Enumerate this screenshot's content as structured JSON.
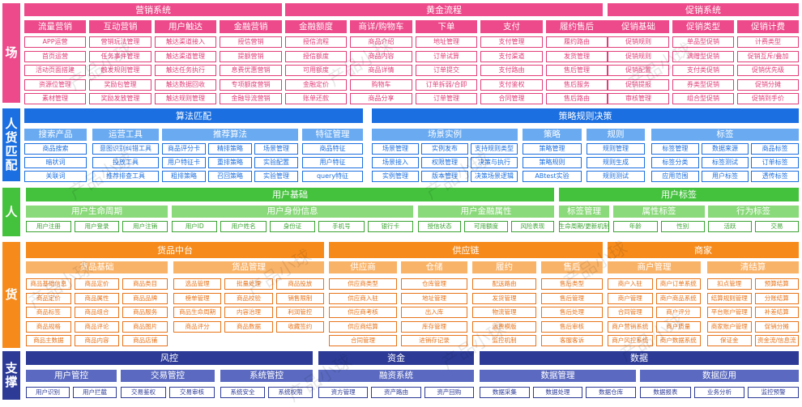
{
  "colors": {
    "pink": "#ec4a8a",
    "pink_chip": "#e23d78",
    "blue": "#1b6fe0",
    "blue_sub": "#69aaf1",
    "blue_chip": "#1b6fe0",
    "green": "#44c23d",
    "green_sub": "#8ad97a",
    "green_chip": "#3aa332",
    "orange": "#f68b1c",
    "orange_sub": "#f9b368",
    "orange_chip": "#e8741a",
    "navy": "#2d3b97",
    "navy_sub": "#5b6ac0",
    "navy_chip": "#2d3b97"
  },
  "watermark": "产品小球",
  "rows": {
    "chang": {
      "label": "场",
      "headers": [
        "营销系统",
        "黄金流程",
        "促销系统"
      ],
      "columns": [
        {
          "title": "流量营销",
          "items": [
            "APP运营",
            "首页运营",
            "活动页面搭建",
            "资源位管理",
            "素材管理"
          ]
        },
        {
          "title": "互动营销",
          "items": [
            "营销玩法管理",
            "任务事件管理",
            "触发规则管理",
            "奖励包管理",
            "奖励发放管理"
          ]
        },
        {
          "title": "用户触达",
          "items": [
            "触达渠道接入",
            "触达渠道管理",
            "触达任务执行",
            "触达数据回收",
            "触达规则管理"
          ]
        },
        {
          "title": "金融营销",
          "items": [
            "授信营销",
            "提额营销",
            "息费优惠营销",
            "专项额度营销",
            "金融导流营销"
          ]
        },
        {
          "title": "金融额度",
          "items": [
            "授信流程",
            "授信额度",
            "可用额度",
            "金融定价",
            "账单还款"
          ]
        },
        {
          "title": "商详/购物车",
          "items": [
            "商品介绍",
            "商品内容",
            "商品详情",
            "购物车",
            "商品分享"
          ]
        },
        {
          "title": "下单",
          "items": [
            "地址管理",
            "订单试算",
            "订单提交",
            "订单拆弱/合即",
            "订单管理"
          ]
        },
        {
          "title": "支付",
          "items": [
            "支付管理",
            "支付渠道",
            "支付路由",
            "支付鉴权",
            "合同管理"
          ]
        },
        {
          "title": "履约售后",
          "items": [
            "履约路由",
            "发货管理",
            "售后管理",
            "售后服务",
            "售后路由"
          ]
        },
        {
          "title": "促销基础",
          "items": [
            "促销规则",
            "促销规则",
            "促销配置",
            "促销提报",
            "审核管理"
          ]
        },
        {
          "title": "促销类型",
          "items": [
            "单品型促销",
            "满赠型促销",
            "支付类促销",
            "券类型促销",
            "组合型促销"
          ]
        },
        {
          "title": "促销计费",
          "items": [
            "计费类型",
            "促销互斥/叠加",
            "促销优先级",
            "促销分摊",
            "促销到手价"
          ]
        }
      ]
    },
    "renhuo": {
      "label": "人货匹配",
      "headers": [
        "算法匹配",
        "策略规则决策"
      ],
      "groups": [
        {
          "title": "搜索产品",
          "rows": [
            [
              "商品搜索"
            ],
            [
              "暗状词"
            ],
            [
              "关联词"
            ]
          ]
        },
        {
          "title": "运营工具",
          "rows": [
            [
              "意图识别纠错工具"
            ],
            [
              "投放工具"
            ],
            [
              "推荐排查工具"
            ]
          ]
        },
        {
          "title": "推荐算法",
          "rows": [
            [
              "商品评分卡",
              "精排策略",
              "场景管理"
            ],
            [
              "用户特征卡",
              "重排策略",
              "实验配置"
            ],
            [
              "粗排策略",
              "召回策略",
              "实验管理"
            ]
          ]
        },
        {
          "title": "特征管理",
          "rows": [
            [
              "商品特征"
            ],
            [
              "用户特征"
            ],
            [
              "query特征"
            ]
          ]
        },
        {
          "title": "场景实例",
          "rows": [
            [
              "场景管理",
              "实例发布",
              "支持规则类型"
            ],
            [
              "场景接入",
              "权限管理",
              "决策与执行"
            ],
            [
              "实例管理",
              "版本管理",
              "决策场景逻辑"
            ]
          ]
        },
        {
          "title": "策略",
          "rows": [
            [
              "策略管理"
            ],
            [
              "策略规则"
            ],
            [
              "ABtest实验"
            ]
          ]
        },
        {
          "title": "规则",
          "rows": [
            [
              "规则管理"
            ],
            [
              "规则生成"
            ],
            [
              "规则测试"
            ]
          ]
        },
        {
          "title": "标签",
          "rows": [
            [
              "标签管理",
              "数据来源",
              "商品标签"
            ],
            [
              "标签分类",
              "标签测试",
              "订单标签"
            ],
            [
              "应用范围",
              "用户标签",
              "透传标签"
            ]
          ]
        }
      ]
    },
    "ren": {
      "label": "人",
      "headers": [
        "用户基础",
        "用户标签"
      ],
      "groups": [
        {
          "title": "用户生命周期",
          "items": [
            "用户注册",
            "用户登录",
            "用户注销"
          ]
        },
        {
          "title": "用户身份信息",
          "items": [
            "用户ID",
            "用户姓名",
            "身份证",
            "手机号",
            "银行卡"
          ]
        },
        {
          "title": "用户金融属性",
          "items": [
            "授信状态",
            "可用额度",
            "风险表现"
          ]
        },
        {
          "title": "标签管理",
          "items": [
            "生命周期/更新机制"
          ]
        },
        {
          "title": "属性标签",
          "items": [
            "年龄",
            "性别"
          ]
        },
        {
          "title": "行为标签",
          "items": [
            "活跃",
            "交易"
          ]
        }
      ]
    },
    "huo": {
      "label": "货",
      "headers": [
        "货品中台",
        "供应链",
        "商家"
      ],
      "groups": [
        {
          "title": "货品基础",
          "cols": [
            [
              "商品基础信息",
              "商品定价",
              "商品标签",
              "商品规格",
              "商品主数据"
            ],
            [
              "商品定价",
              "商品属性",
              "商品组合",
              "商品评论",
              "商品内容"
            ],
            [
              "商品类目",
              "商品品牌",
              "商品服务",
              "商品图片",
              "商品店铺"
            ]
          ]
        },
        {
          "title": "货品管理",
          "cols": [
            [
              "选品管理",
              "榜单管理",
              "商品生命周期",
              "商品评分"
            ],
            [
              "批量处理",
              "商品校验",
              "内容治理",
              "商品数据"
            ],
            [
              "商品投放",
              "销售限制",
              "利润管控",
              "收藏签约"
            ]
          ]
        },
        {
          "title": "供应商",
          "cols": [
            [
              "供应商类型",
              "供应商入驻",
              "供应商考核",
              "供应商结算",
              "合同管理"
            ]
          ]
        },
        {
          "title": "仓储",
          "cols": [
            [
              "仓库管理",
              "地址管理",
              "出入库",
              "库存管理",
              "进销存记录"
            ]
          ]
        },
        {
          "title": "履约",
          "cols": [
            [
              "配送路由",
              "发货管理",
              "物流管理",
              "运费模版",
              "监控机制"
            ]
          ]
        },
        {
          "title": "售后",
          "cols": [
            [
              "售后类型",
              "售后管理",
              "售后处理",
              "售后审核",
              "客服客诉"
            ]
          ]
        },
        {
          "title": "商户管理",
          "cols": [
            [
              "商户入驻",
              "商户管理",
              "合同管理",
              "商户营销系统",
              "商户风控系统"
            ],
            [
              "商户订单系统",
              "商户商品系统",
              "商户评分",
              "商户质量",
              "商户数据系统"
            ]
          ]
        },
        {
          "title": "清结算",
          "cols": [
            [
              "扣点管理",
              "结算规则管理",
              "平台账户管理",
              "商家账户管理",
              "保证金"
            ],
            [
              "预算结算",
              "分账结算",
              "补差结算",
              "促销分摊",
              "资金流/信息流"
            ]
          ]
        }
      ]
    },
    "zhicheng": {
      "label": "支撑",
      "headers": [
        "风控",
        "资金",
        "数据"
      ],
      "groups": [
        {
          "title": "用户管控",
          "items": [
            "用户识别",
            "用户拦截"
          ]
        },
        {
          "title": "交易管控",
          "items": [
            "交易鉴权",
            "交易审核"
          ]
        },
        {
          "title": "系统管控",
          "items": [
            "系统安全",
            "系统权限"
          ]
        },
        {
          "title": "融资系统",
          "items": [
            "资方管理",
            "资产路由",
            "资产回购"
          ]
        },
        {
          "title": "数据管理",
          "items": [
            "数据采集",
            "数据处理",
            "数据仓库"
          ]
        },
        {
          "title": "数据应用",
          "items": [
            "数据报表",
            "业务分析",
            "监控预警"
          ]
        }
      ]
    }
  }
}
